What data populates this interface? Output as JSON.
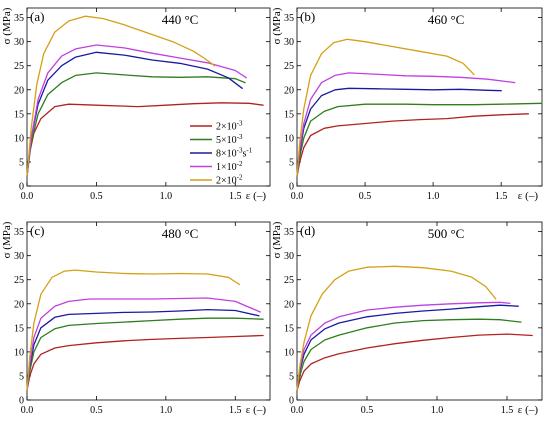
{
  "colors": {
    "2e-3": "#b22222",
    "5e-3": "#2e7d1e",
    "8e-3": "#1a1aa0",
    "1e-2": "#c040e0",
    "2e-2": "#d4a017"
  },
  "legend": {
    "entries": [
      {
        "key": "2e-3",
        "label": "2×10",
        "sup": "-3",
        "tail": ""
      },
      {
        "key": "5e-3",
        "label": "5×10",
        "sup": "-3",
        "tail": ""
      },
      {
        "key": "8e-3",
        "label": "8×10",
        "sup": "-3",
        "tail": "s",
        "tail_sup": "-1"
      },
      {
        "key": "1e-2",
        "label": "1×10",
        "sup": "-2",
        "tail": ""
      },
      {
        "key": "2e-2",
        "label": "2×10",
        "sup": "-2",
        "tail": ""
      }
    ]
  },
  "chart_data": [
    {
      "type": "line",
      "panel_label": "(a)",
      "title": "440 °C",
      "xlabel": "ε (–)",
      "ylabel": "σ (MPa)",
      "xlim": [
        0,
        1.75
      ],
      "ylim": [
        0,
        37
      ],
      "xticks": [
        "0.0",
        "0.5",
        "1.0",
        "1.5"
      ],
      "xtick_values": [
        0,
        0.5,
        1.0,
        1.5
      ],
      "yticks": [
        "0",
        "5",
        "10",
        "15",
        "20",
        "25",
        "30",
        "35"
      ],
      "ytick_values": [
        0,
        5,
        10,
        15,
        20,
        25,
        30,
        35
      ],
      "legend_position": "center-right",
      "series": [
        {
          "key": "2e-3",
          "x": [
            0,
            0.02,
            0.05,
            0.1,
            0.2,
            0.3,
            0.5,
            0.8,
            1.0,
            1.2,
            1.4,
            1.6,
            1.7
          ],
          "y": [
            2,
            7,
            11,
            14,
            16.5,
            17,
            16.8,
            16.5,
            16.8,
            17.1,
            17.3,
            17.2,
            16.8
          ]
        },
        {
          "key": "5e-3",
          "x": [
            0,
            0.03,
            0.08,
            0.15,
            0.25,
            0.35,
            0.5,
            0.7,
            0.9,
            1.1,
            1.3,
            1.5,
            1.57
          ],
          "y": [
            2,
            9,
            15,
            19,
            21.5,
            23,
            23.5,
            23.1,
            22.7,
            22.6,
            22.7,
            22.3,
            21.5
          ]
        },
        {
          "key": "8e-3",
          "x": [
            0,
            0.03,
            0.08,
            0.15,
            0.25,
            0.35,
            0.5,
            0.7,
            0.9,
            1.1,
            1.3,
            1.45,
            1.55
          ],
          "y": [
            2,
            10,
            17,
            22,
            25,
            26.8,
            27.8,
            27.2,
            26.2,
            25.5,
            24.3,
            22.5,
            20.3
          ]
        },
        {
          "key": "1e-2",
          "x": [
            0,
            0.03,
            0.08,
            0.15,
            0.25,
            0.35,
            0.5,
            0.7,
            0.9,
            1.1,
            1.3,
            1.5,
            1.58
          ],
          "y": [
            2,
            10,
            18,
            23.5,
            27,
            28.5,
            29.3,
            28.7,
            27.6,
            26.6,
            25.6,
            24,
            22.5
          ]
        },
        {
          "key": "2e-2",
          "x": [
            0,
            0.03,
            0.07,
            0.12,
            0.2,
            0.3,
            0.42,
            0.55,
            0.7,
            0.9,
            1.05,
            1.2,
            1.28,
            1.35
          ],
          "y": [
            2,
            12,
            21,
            27.5,
            32,
            34.3,
            35.3,
            34.8,
            33.5,
            31.5,
            30,
            28,
            26.5,
            25
          ]
        }
      ]
    },
    {
      "type": "line",
      "panel_label": "(b)",
      "title": "460 °C",
      "xlabel": "ε (–)",
      "ylabel": "σ (MPa)",
      "xlim": [
        0,
        1.8
      ],
      "ylim": [
        0,
        37
      ],
      "xticks": [
        "0.0",
        "0.5",
        "1.0",
        "1.5"
      ],
      "xtick_values": [
        0,
        0.5,
        1.0,
        1.5
      ],
      "yticks": [
        "0",
        "5",
        "10",
        "15",
        "20",
        "25",
        "30",
        "35"
      ],
      "ytick_values": [
        0,
        5,
        10,
        15,
        20,
        25,
        30,
        35
      ],
      "legend_position": "none",
      "series": [
        {
          "key": "2e-3",
          "x": [
            0,
            0.02,
            0.05,
            0.1,
            0.2,
            0.3,
            0.5,
            0.7,
            0.9,
            1.1,
            1.3,
            1.5,
            1.7
          ],
          "y": [
            2,
            5,
            8,
            10.5,
            12,
            12.5,
            13,
            13.5,
            13.8,
            14,
            14.5,
            14.8,
            15
          ]
        },
        {
          "key": "5e-3",
          "x": [
            0,
            0.02,
            0.05,
            0.1,
            0.2,
            0.3,
            0.5,
            0.8,
            1.0,
            1.3,
            1.5,
            1.8
          ],
          "y": [
            2,
            6,
            10,
            13.5,
            15.5,
            16.5,
            17,
            17,
            16.9,
            16.9,
            17,
            17.2
          ]
        },
        {
          "key": "8e-3",
          "x": [
            0,
            0.02,
            0.05,
            0.1,
            0.18,
            0.28,
            0.38,
            0.6,
            0.8,
            1.0,
            1.2,
            1.4,
            1.5
          ],
          "y": [
            2,
            7,
            12,
            16,
            18.8,
            20,
            20.3,
            20.2,
            20.1,
            20,
            20.1,
            19.9,
            19.8
          ]
        },
        {
          "key": "1e-2",
          "x": [
            0,
            0.02,
            0.05,
            0.1,
            0.18,
            0.28,
            0.38,
            0.6,
            0.8,
            1.0,
            1.2,
            1.4,
            1.6
          ],
          "y": [
            2,
            7.5,
            13,
            18,
            21.5,
            23,
            23.5,
            23.2,
            22.9,
            22.8,
            22.6,
            22.2,
            21.5
          ]
        },
        {
          "key": "2e-2",
          "x": [
            0,
            0.02,
            0.05,
            0.1,
            0.18,
            0.27,
            0.37,
            0.5,
            0.7,
            0.9,
            1.1,
            1.22,
            1.3
          ],
          "y": [
            2,
            9,
            16,
            23,
            27.5,
            29.8,
            30.5,
            30,
            29,
            28,
            27,
            25.5,
            23.2
          ]
        }
      ]
    },
    {
      "type": "line",
      "panel_label": "(c)",
      "title": "480 °C",
      "xlabel": "ε (–)",
      "ylabel": "σ (MPa)",
      "xlim": [
        0,
        1.75
      ],
      "ylim": [
        0,
        37
      ],
      "xticks": [
        "0.0",
        "0.5",
        "1.0",
        "1.5"
      ],
      "xtick_values": [
        0,
        0.5,
        1.0,
        1.5
      ],
      "yticks": [
        "0",
        "5",
        "10",
        "15",
        "20",
        "25",
        "30",
        "35"
      ],
      "ytick_values": [
        0,
        5,
        10,
        15,
        20,
        25,
        30,
        35
      ],
      "legend_position": "none",
      "series": [
        {
          "key": "2e-3",
          "x": [
            0,
            0.02,
            0.05,
            0.1,
            0.2,
            0.3,
            0.5,
            0.7,
            0.9,
            1.1,
            1.3,
            1.5,
            1.7
          ],
          "y": [
            2,
            5,
            7.5,
            9.5,
            10.8,
            11.3,
            11.9,
            12.3,
            12.6,
            12.8,
            13,
            13.2,
            13.4
          ]
        },
        {
          "key": "5e-3",
          "x": [
            0,
            0.02,
            0.05,
            0.1,
            0.2,
            0.3,
            0.5,
            0.7,
            0.9,
            1.1,
            1.3,
            1.5,
            1.7
          ],
          "y": [
            2,
            6,
            10,
            13,
            14.8,
            15.5,
            15.9,
            16.2,
            16.5,
            16.8,
            17,
            17,
            16.8
          ]
        },
        {
          "key": "8e-3",
          "x": [
            0,
            0.02,
            0.05,
            0.1,
            0.2,
            0.3,
            0.5,
            0.7,
            0.9,
            1.1,
            1.3,
            1.5,
            1.67
          ],
          "y": [
            2,
            7,
            11.5,
            15,
            17.2,
            17.8,
            18,
            18.2,
            18.3,
            18.5,
            18.8,
            18.6,
            17.5
          ]
        },
        {
          "key": "1e-2",
          "x": [
            0,
            0.02,
            0.05,
            0.1,
            0.2,
            0.3,
            0.45,
            0.7,
            0.9,
            1.1,
            1.3,
            1.5,
            1.68
          ],
          "y": [
            2,
            7.5,
            13,
            17,
            19.5,
            20.5,
            21,
            21,
            21,
            21.1,
            21.2,
            20.5,
            18.3
          ]
        },
        {
          "key": "2e-2",
          "x": [
            0,
            0.02,
            0.05,
            0.1,
            0.18,
            0.27,
            0.35,
            0.5,
            0.7,
            0.9,
            1.1,
            1.3,
            1.45,
            1.53
          ],
          "y": [
            2,
            9,
            16,
            22,
            25.5,
            26.8,
            27,
            26.6,
            26.3,
            26.2,
            26.3,
            26.2,
            25.5,
            24
          ]
        }
      ]
    },
    {
      "type": "line",
      "panel_label": "(d)",
      "title": "500 °C",
      "xlabel": "ε (–)",
      "ylabel": "σ (MPa)",
      "xlim": [
        0,
        1.75
      ],
      "ylim": [
        0,
        37
      ],
      "xticks": [
        "0.0",
        "0.5",
        "1.0",
        "1.5"
      ],
      "xtick_values": [
        0,
        0.5,
        1.0,
        1.5
      ],
      "yticks": [
        "0",
        "5",
        "10",
        "15",
        "20",
        "25",
        "30",
        "35"
      ],
      "ytick_values": [
        0,
        5,
        10,
        15,
        20,
        25,
        30,
        35
      ],
      "legend_position": "none",
      "series": [
        {
          "key": "2e-3",
          "x": [
            0,
            0.02,
            0.05,
            0.1,
            0.2,
            0.3,
            0.5,
            0.7,
            0.9,
            1.1,
            1.3,
            1.5,
            1.68
          ],
          "y": [
            2,
            4,
            6,
            7.5,
            8.8,
            9.6,
            10.8,
            11.7,
            12.4,
            13,
            13.5,
            13.7,
            13.4
          ]
        },
        {
          "key": "5e-3",
          "x": [
            0,
            0.02,
            0.05,
            0.1,
            0.2,
            0.3,
            0.5,
            0.7,
            0.9,
            1.1,
            1.3,
            1.45,
            1.6
          ],
          "y": [
            2,
            5,
            8,
            10.5,
            12.5,
            13.5,
            15,
            16,
            16.5,
            16.7,
            16.8,
            16.7,
            16.2
          ]
        },
        {
          "key": "8e-3",
          "x": [
            0,
            0.02,
            0.05,
            0.1,
            0.2,
            0.3,
            0.5,
            0.7,
            0.9,
            1.1,
            1.3,
            1.45,
            1.58
          ],
          "y": [
            2,
            6,
            9.5,
            12.5,
            14.8,
            16,
            17.3,
            18,
            18.5,
            18.9,
            19.4,
            19.7,
            19.5
          ]
        },
        {
          "key": "1e-2",
          "x": [
            0,
            0.02,
            0.05,
            0.1,
            0.2,
            0.3,
            0.5,
            0.7,
            0.9,
            1.1,
            1.3,
            1.45,
            1.52
          ],
          "y": [
            2,
            6.5,
            10.5,
            13.5,
            16,
            17.3,
            18.7,
            19.3,
            19.7,
            20,
            20.2,
            20.3,
            20.1
          ]
        },
        {
          "key": "2e-2",
          "x": [
            0,
            0.02,
            0.05,
            0.1,
            0.18,
            0.27,
            0.37,
            0.5,
            0.7,
            0.9,
            1.1,
            1.25,
            1.35,
            1.42
          ],
          "y": [
            2,
            7,
            12,
            17.5,
            22,
            25,
            26.8,
            27.6,
            27.8,
            27.5,
            26.8,
            25.5,
            23.5,
            21
          ]
        }
      ]
    }
  ]
}
